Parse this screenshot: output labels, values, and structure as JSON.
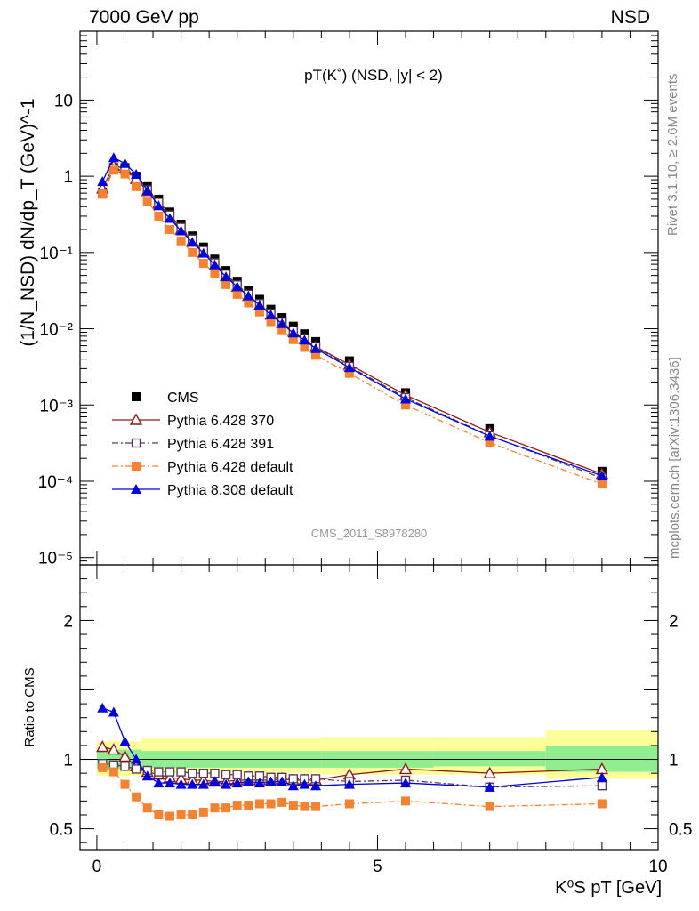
{
  "header": {
    "left_label": "7000 GeV pp",
    "right_label": "NSD"
  },
  "side_labels": {
    "rivet": "Rivet 3.1.10, ≥ 2.6M events",
    "mcplots": "mcplots.cern.ch [arXiv:1306.3436]"
  },
  "analysis_id": "CMS_2011_S8978280",
  "colors": {
    "cms": "#000000",
    "p370": "#8b1a1a",
    "p391": "#5a3a55",
    "p6def": "#f58231",
    "p8def": "#0000dd",
    "band_inner": "#90ee90",
    "band_outer": "#ffff99"
  },
  "chart_data": [
    {
      "type": "scatter",
      "panel": "main",
      "title": "pT(K˚) (NSD, |y| < 2)",
      "ylabel": "(1/N_NSD) dN/dp_T (GeV)^-1",
      "yscale": "log",
      "ylim": [
        8e-06,
        80
      ],
      "xlim": [
        -0.3,
        10
      ],
      "y_ticks": [
        {
          "v": 1e-05,
          "label": "10⁻⁵"
        },
        {
          "v": 0.0001,
          "label": "10⁻⁴"
        },
        {
          "v": 0.001,
          "label": "10⁻³"
        },
        {
          "v": 0.01,
          "label": "10⁻²"
        },
        {
          "v": 0.1,
          "label": "10⁻¹"
        },
        {
          "v": 1,
          "label": "1"
        },
        {
          "v": 10,
          "label": "10"
        }
      ],
      "legend_position": "bottom-left",
      "x": [
        0.1,
        0.3,
        0.5,
        0.7,
        0.9,
        1.1,
        1.3,
        1.5,
        1.7,
        1.9,
        2.1,
        2.3,
        2.5,
        2.7,
        2.9,
        3.1,
        3.3,
        3.5,
        3.7,
        3.9,
        4.5,
        5.5,
        7.0,
        9.0
      ],
      "series": [
        {
          "name": "CMS",
          "key": "cms",
          "marker": "square-filled",
          "values": [
            0.62,
            1.3,
            1.3,
            1.0,
            0.73,
            0.5,
            0.34,
            0.235,
            0.165,
            0.118,
            0.082,
            0.058,
            0.042,
            0.032,
            0.0243,
            0.018,
            0.014,
            0.0108,
            0.0086,
            0.0068,
            0.0038,
            0.00145,
            0.00049,
            0.000135
          ]
        },
        {
          "name": "Pythia 6.428 370",
          "key": "p370",
          "marker": "triangle-open",
          "line": "solid",
          "values": [
            0.69,
            1.37,
            1.27,
            0.92,
            0.64,
            0.44,
            0.29,
            0.2,
            0.142,
            0.1,
            0.068,
            0.049,
            0.0355,
            0.027,
            0.0204,
            0.0153,
            0.0119,
            0.0092,
            0.0073,
            0.0058,
            0.0034,
            0.00135,
            0.00044,
            0.000125
          ]
        },
        {
          "name": "Pythia 6.428 391",
          "key": "p391",
          "marker": "square-open",
          "line": "dashdot",
          "values": [
            0.6,
            1.25,
            1.2,
            0.9,
            0.66,
            0.455,
            0.31,
            0.213,
            0.15,
            0.106,
            0.073,
            0.052,
            0.0375,
            0.0283,
            0.0214,
            0.0158,
            0.0122,
            0.0094,
            0.0074,
            0.0058,
            0.0032,
            0.00125,
            0.000395,
            0.00011
          ]
        },
        {
          "name": "Pythia 6.428 default",
          "key": "p6def",
          "marker": "square-filled",
          "line": "dashdot",
          "values": [
            0.58,
            1.2,
            1.07,
            0.73,
            0.47,
            0.3,
            0.2,
            0.142,
            0.1,
            0.072,
            0.053,
            0.038,
            0.0283,
            0.0218,
            0.0166,
            0.0124,
            0.0097,
            0.0072,
            0.0057,
            0.0045,
            0.0026,
            0.001,
            0.00032,
            9.2e-05
          ]
        },
        {
          "name": "Pythia 8.308 default",
          "key": "p8def",
          "marker": "triangle-filled",
          "line": "solid",
          "values": [
            0.85,
            1.75,
            1.47,
            1.06,
            0.65,
            0.41,
            0.28,
            0.192,
            0.136,
            0.098,
            0.069,
            0.048,
            0.0355,
            0.027,
            0.0205,
            0.0152,
            0.0117,
            0.0088,
            0.0071,
            0.0055,
            0.0031,
            0.0012,
            0.00039,
            0.000118
          ]
        }
      ]
    },
    {
      "type": "scatter",
      "panel": "ratio",
      "ylabel": "Ratio to CMS",
      "xlabel": "K⁰S pT [GeV]",
      "xlim": [
        -0.3,
        10
      ],
      "ylim": [
        0.35,
        2.4
      ],
      "x_ticks": [
        0,
        5,
        10
      ],
      "y_ticks": [
        0.5,
        1,
        2
      ],
      "band": {
        "edges": [
          0,
          0.8,
          4,
          6,
          8,
          10
        ],
        "inner": [
          [
            0.93,
            1.07
          ],
          [
            0.94,
            1.06
          ],
          [
            0.94,
            1.06
          ],
          [
            0.95,
            1.06
          ],
          [
            0.91,
            1.1
          ]
        ],
        "outer": [
          [
            0.88,
            1.13
          ],
          [
            0.9,
            1.15
          ],
          [
            0.89,
            1.16
          ],
          [
            0.89,
            1.16
          ],
          [
            0.86,
            1.21
          ]
        ]
      },
      "x": [
        0.1,
        0.3,
        0.5,
        0.7,
        0.9,
        1.1,
        1.3,
        1.5,
        1.7,
        1.9,
        2.1,
        2.3,
        2.5,
        2.7,
        2.9,
        3.1,
        3.3,
        3.5,
        3.7,
        3.9,
        4.5,
        5.5,
        7.0,
        9.0
      ],
      "series": [
        {
          "name": "Pythia 6.428 370",
          "key": "p370",
          "marker": "triangle-open",
          "line": "solid",
          "values": [
            1.09,
            1.07,
            1.02,
            0.95,
            0.91,
            0.89,
            0.87,
            0.86,
            0.85,
            0.85,
            0.84,
            0.84,
            0.85,
            0.85,
            0.85,
            0.85,
            0.86,
            0.85,
            0.85,
            0.85,
            0.89,
            0.93,
            0.9,
            0.93
          ]
        },
        {
          "name": "Pythia 6.428 391",
          "key": "p391",
          "marker": "square-open",
          "line": "dashdot",
          "values": [
            0.97,
            0.96,
            0.95,
            0.93,
            0.92,
            0.91,
            0.91,
            0.91,
            0.9,
            0.9,
            0.9,
            0.89,
            0.89,
            0.88,
            0.88,
            0.87,
            0.87,
            0.86,
            0.86,
            0.86,
            0.84,
            0.85,
            0.8,
            0.81
          ]
        },
        {
          "name": "Pythia 6.428 default",
          "key": "p6def",
          "marker": "square-filled",
          "line": "dashdot",
          "values": [
            0.94,
            0.91,
            0.82,
            0.73,
            0.65,
            0.6,
            0.59,
            0.6,
            0.6,
            0.62,
            0.65,
            0.65,
            0.67,
            0.67,
            0.68,
            0.68,
            0.69,
            0.67,
            0.66,
            0.66,
            0.68,
            0.7,
            0.66,
            0.68
          ]
        },
        {
          "name": "Pythia 8.308 default",
          "key": "p8def",
          "marker": "triangle-filled",
          "line": "solid",
          "values": [
            1.37,
            1.34,
            1.13,
            1.0,
            0.88,
            0.83,
            0.83,
            0.82,
            0.82,
            0.82,
            0.84,
            0.82,
            0.83,
            0.84,
            0.83,
            0.84,
            0.84,
            0.81,
            0.82,
            0.81,
            0.82,
            0.83,
            0.8,
            0.87
          ]
        }
      ]
    }
  ]
}
